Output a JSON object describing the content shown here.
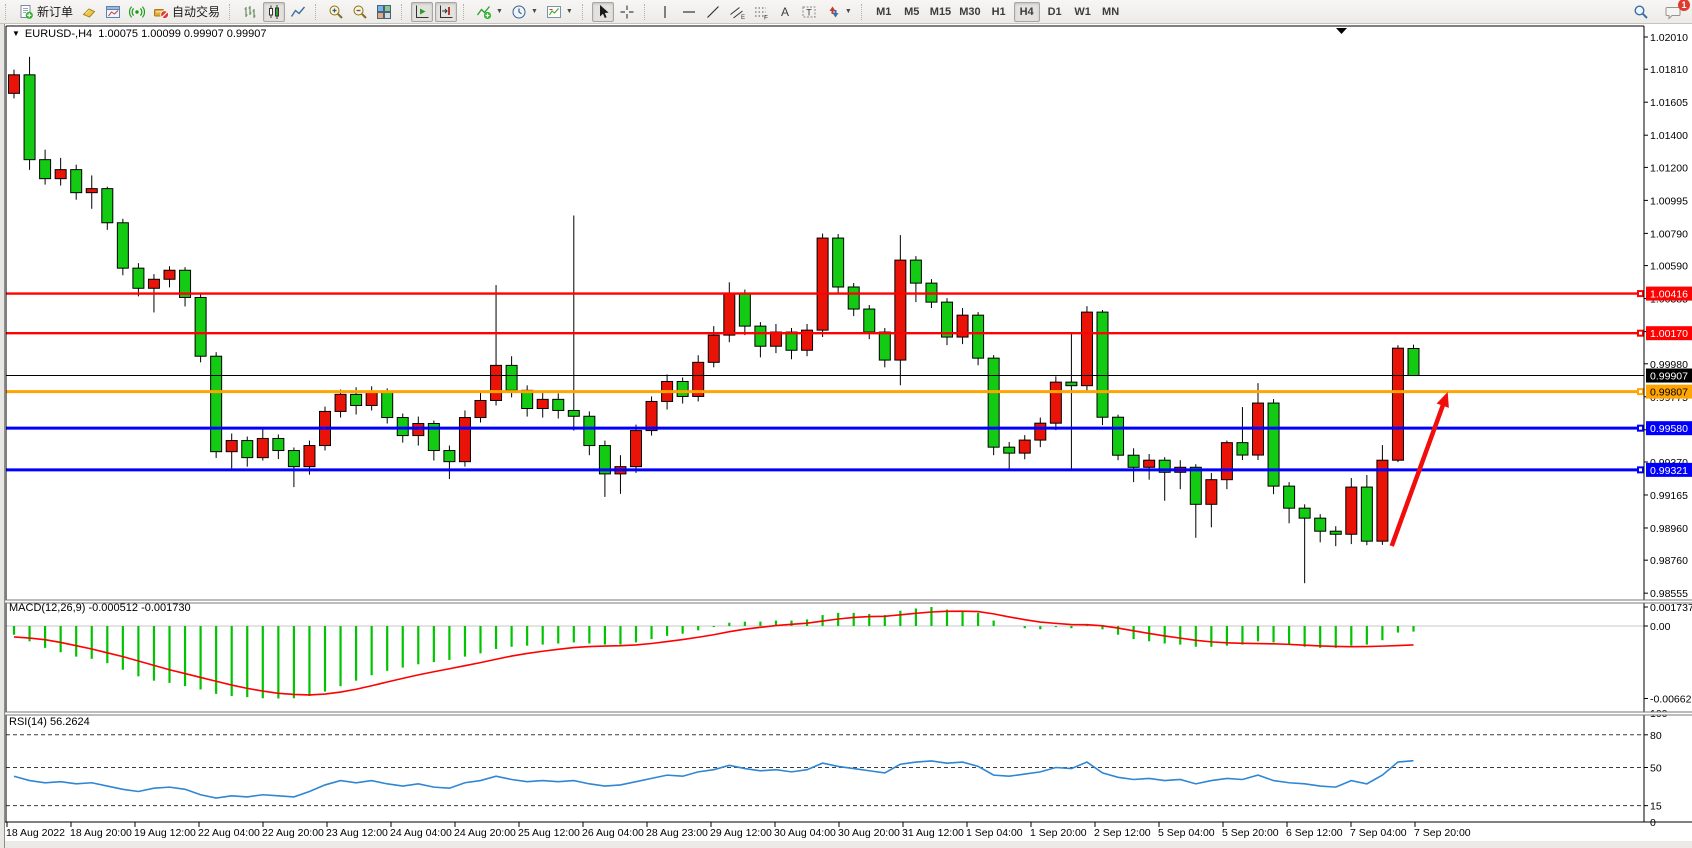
{
  "toolbar": {
    "new_order_label": "新订单",
    "autotrading_label": "自动交易",
    "timeframes": [
      "M1",
      "M5",
      "M15",
      "M30",
      "H1",
      "H4",
      "D1",
      "W1",
      "MN"
    ],
    "active_timeframe": "H4",
    "notifications_count": "1"
  },
  "chart": {
    "title_symbol": "EURUSD-,H4",
    "title_ohlc": "1.00075 1.00099 0.99907 0.99907",
    "macd_label": "MACD(12,26,9) -0.000512 -0.001730",
    "rsi_label": "RSI(14) 56.2624",
    "price_axis_ticks": [
      "1.02010",
      "1.01810",
      "1.01605",
      "1.01400",
      "1.01200",
      "1.00995",
      "1.00790",
      "1.00590",
      "1.00385",
      "1.00180",
      "0.99980",
      "0.99775",
      "0.99570",
      "0.99370",
      "0.99165",
      "0.98960",
      "0.98760",
      "0.98555"
    ],
    "hlines": [
      {
        "price": 1.00416,
        "label": "1.00416",
        "color": "#fe0100",
        "width": 2.4,
        "text_color": "#ffffff"
      },
      {
        "price": 1.0017,
        "label": "1.00170",
        "color": "#fe0100",
        "width": 2.4,
        "text_color": "#ffffff"
      },
      {
        "price": 0.99807,
        "label": "0.99807",
        "color": "#ffa400",
        "width": 3,
        "text_color": "#000000"
      },
      {
        "price": 0.9958,
        "label": "0.99580",
        "color": "#0100fe",
        "width": 3,
        "text_color": "#ffffff"
      },
      {
        "price": 0.99321,
        "label": "0.99321",
        "color": "#0100fe",
        "width": 3,
        "text_color": "#ffffff"
      }
    ],
    "current_price": {
      "price": 0.99907,
      "label": "0.99907",
      "color": "#000000",
      "text_color": "#ffffff"
    },
    "macd_axis": [
      {
        "v": 17.37,
        "label": "0.001737"
      },
      {
        "v": 0,
        "label": "0.00"
      },
      {
        "v": -66.28,
        "label": "-0.006628"
      }
    ],
    "rsi_axis": [
      {
        "v": 100,
        "label": "100",
        "dashed": false
      },
      {
        "v": 80,
        "label": "80",
        "dashed": true
      },
      {
        "v": 50,
        "label": "50",
        "dashed": true
      },
      {
        "v": 15,
        "label": "15",
        "dashed": true
      },
      {
        "v": 0,
        "label": "0",
        "dashed": false
      }
    ],
    "date_labels": [
      "18 Aug 2022",
      "18 Aug 20:00",
      "19 Aug 12:00",
      "22 Aug 04:00",
      "22 Aug 20:00",
      "23 Aug 12:00",
      "24 Aug 04:00",
      "24 Aug 20:00",
      "25 Aug 12:00",
      "26 Aug 04:00",
      "28 Aug 23:00",
      "29 Aug 12:00",
      "30 Aug 04:00",
      "30 Aug 20:00",
      "31 Aug 12:00",
      "1 Sep 04:00",
      "1 Sep 20:00",
      "2 Sep 12:00",
      "5 Sep 04:00",
      "5 Sep 20:00",
      "6 Sep 12:00",
      "7 Sep 04:00",
      "7 Sep 20:00"
    ]
  },
  "chart_data": {
    "type": "candlestick",
    "symbol": "EURUSD-",
    "timeframe": "H4",
    "note": "Chinese color convention: red = bullish (close>open), green = bearish",
    "up_color": "#ea1308",
    "down_color": "#14cb14",
    "price_range": [
      0.98555,
      1.0201
    ],
    "ohlc": [
      [
        1.0166,
        1.01807,
        1.01629,
        1.01775
      ],
      [
        1.01775,
        1.01887,
        1.01185,
        1.01248
      ],
      [
        1.01248,
        1.0131,
        1.01093,
        1.0113
      ],
      [
        1.0113,
        1.01259,
        1.01087,
        1.01186
      ],
      [
        1.01186,
        1.01217,
        1.00999,
        1.01043
      ],
      [
        1.01043,
        1.0115,
        1.00943,
        1.01068
      ],
      [
        1.01068,
        1.0108,
        1.00812,
        1.00856
      ],
      [
        1.00856,
        1.00881,
        1.0053,
        1.00574
      ],
      [
        1.00574,
        1.00605,
        1.00399,
        1.00449
      ],
      [
        1.00449,
        1.00537,
        1.00299,
        1.00505
      ],
      [
        1.00505,
        1.00586,
        1.00455,
        1.00561
      ],
      [
        1.00561,
        1.0058,
        1.00336,
        1.00392
      ],
      [
        1.00392,
        1.00416,
        0.99989,
        1.00027
      ],
      [
        1.00027,
        1.00052,
        0.99395,
        0.99434
      ],
      [
        0.99434,
        0.99547,
        0.9933,
        0.99503
      ],
      [
        0.99503,
        0.99528,
        0.99341,
        0.99397
      ],
      [
        0.99397,
        0.99572,
        0.99379,
        0.99516
      ],
      [
        0.99516,
        0.99541,
        0.99388,
        0.99441
      ],
      [
        0.99441,
        0.9946,
        0.99214,
        0.99341
      ],
      [
        0.99341,
        0.99503,
        0.99291,
        0.99472
      ],
      [
        0.99472,
        0.99714,
        0.99441,
        0.99684
      ],
      [
        0.99684,
        0.9982,
        0.99646,
        0.9979
      ],
      [
        0.9979,
        0.99834,
        0.99665,
        0.99721
      ],
      [
        0.99721,
        0.9984,
        0.9969,
        0.99802
      ],
      [
        0.99802,
        0.99827,
        0.99609,
        0.99646
      ],
      [
        0.99646,
        0.99671,
        0.9949,
        0.99534
      ],
      [
        0.99534,
        0.99652,
        0.99472,
        0.99609
      ],
      [
        0.99609,
        0.99627,
        0.99379,
        0.99441
      ],
      [
        0.99441,
        0.99472,
        0.99264,
        0.99372
      ],
      [
        0.99372,
        0.9969,
        0.99341,
        0.99646
      ],
      [
        0.99646,
        0.99808,
        0.99615,
        0.99752
      ],
      [
        0.99752,
        1.00469,
        0.99721,
        0.9997
      ],
      [
        0.9997,
        1.00027,
        0.99771,
        0.99815
      ],
      [
        0.99815,
        0.99846,
        0.99652,
        0.99702
      ],
      [
        0.99702,
        0.99802,
        0.99646,
        0.99759
      ],
      [
        0.99759,
        0.99796,
        0.9964,
        0.9969
      ],
      [
        0.9969,
        1.00901,
        0.99565,
        0.99654
      ],
      [
        0.99654,
        0.99684,
        0.99412,
        0.99472
      ],
      [
        0.99472,
        0.99503,
        0.99153,
        0.99296
      ],
      [
        0.99296,
        0.99412,
        0.99172,
        0.99341
      ],
      [
        0.99341,
        0.99602,
        0.99302,
        0.99565
      ],
      [
        0.99565,
        0.99777,
        0.99534,
        0.99746
      ],
      [
        0.99746,
        0.99914,
        0.99696,
        0.9987
      ],
      [
        0.9987,
        0.99895,
        0.99733,
        0.99777
      ],
      [
        0.99777,
        1.00033,
        0.99746,
        0.99989
      ],
      [
        0.99989,
        1.00214,
        0.99958,
        1.00158
      ],
      [
        1.00158,
        1.00486,
        1.00114,
        1.00416
      ],
      [
        1.00416,
        1.00441,
        1.00158,
        1.00214
      ],
      [
        1.00214,
        1.00239,
        1.0002,
        1.00089
      ],
      [
        1.00089,
        1.00227,
        1.00046,
        1.00177
      ],
      [
        1.00177,
        1.00202,
        1.00008,
        1.00064
      ],
      [
        1.00064,
        1.00227,
        1.00027,
        1.00189
      ],
      [
        1.00189,
        1.00789,
        1.00146,
        1.00761
      ],
      [
        1.00761,
        1.00786,
        1.00419,
        1.00457
      ],
      [
        1.00457,
        1.00482,
        1.00276,
        1.0032
      ],
      [
        1.0032,
        1.00345,
        1.00133,
        1.00177
      ],
      [
        1.00177,
        1.00202,
        0.99958,
        1.00003
      ],
      [
        1.00003,
        1.00779,
        0.99847,
        1.00624
      ],
      [
        1.00624,
        1.00649,
        1.00363,
        1.00481
      ],
      [
        1.00481,
        1.00506,
        1.00326,
        1.00363
      ],
      [
        1.00363,
        1.00388,
        1.00096,
        1.00146
      ],
      [
        1.00146,
        1.00326,
        1.00102,
        1.00282
      ],
      [
        1.00282,
        1.00301,
        0.99971,
        1.00015
      ],
      [
        1.00015,
        1.00034,
        0.99412,
        0.99462
      ],
      [
        0.99462,
        0.99494,
        0.99319,
        0.99425
      ],
      [
        0.99425,
        0.99537,
        0.99387,
        0.99506
      ],
      [
        0.99506,
        0.99646,
        0.99462,
        0.99611
      ],
      [
        0.99611,
        0.99902,
        0.99568,
        0.99866
      ],
      [
        0.99866,
        1.00177,
        0.99319,
        0.99844
      ],
      [
        0.99844,
        1.00338,
        0.99808,
        1.00301
      ],
      [
        1.00301,
        1.00314,
        0.99599,
        0.99648
      ],
      [
        0.99648,
        0.99664,
        0.99381,
        0.99412
      ],
      [
        0.99412,
        0.99455,
        0.99245,
        0.99337
      ],
      [
        0.99337,
        0.99419,
        0.9926,
        0.99381
      ],
      [
        0.99381,
        0.994,
        0.99129,
        0.99306
      ],
      [
        0.99306,
        0.99381,
        0.99201,
        0.99337
      ],
      [
        0.99337,
        0.99356,
        0.98899,
        0.99107
      ],
      [
        0.99107,
        0.99302,
        0.98964,
        0.9926
      ],
      [
        0.9926,
        0.99503,
        0.99201,
        0.9949
      ],
      [
        0.9949,
        0.99711,
        0.99382,
        0.99413
      ],
      [
        0.99413,
        0.9986,
        0.99382,
        0.99736
      ],
      [
        0.99736,
        0.99761,
        0.9917,
        0.9922
      ],
      [
        0.9922,
        0.99245,
        0.98989,
        0.99083
      ],
      [
        0.99083,
        0.99107,
        0.98617,
        0.99021
      ],
      [
        0.99021,
        0.99046,
        0.98871,
        0.9894
      ],
      [
        0.9894,
        0.98971,
        0.98847,
        0.98921
      ],
      [
        0.98921,
        0.9927,
        0.9886,
        0.99214
      ],
      [
        0.99214,
        0.99289,
        0.98853,
        0.98878
      ],
      [
        0.98878,
        0.99475,
        0.98855,
        0.99381
      ],
      [
        0.99381,
        1.00096,
        0.99369,
        1.00077
      ],
      [
        1.00075,
        1.00099,
        0.99907,
        0.99907
      ]
    ],
    "macd_unit": 0.0001,
    "macd_histogram": [
      -8,
      -14,
      -20,
      -24,
      -28,
      -30,
      -34,
      -40,
      -46,
      -50,
      -52,
      -55,
      -58,
      -62,
      -64,
      -65,
      -66,
      -66.3,
      -66,
      -64,
      -60,
      -55,
      -50,
      -45,
      -41,
      -38,
      -35,
      -33,
      -31,
      -28,
      -25,
      -21,
      -19,
      -18,
      -17,
      -16,
      -15,
      -16,
      -17,
      -17,
      -15,
      -12,
      -9,
      -7,
      -4,
      -1,
      3,
      4,
      4,
      5,
      5,
      6,
      10,
      12,
      12,
      11,
      10,
      14,
      16,
      17.37,
      15,
      14,
      12,
      5,
      0,
      -2,
      -3,
      -1,
      -2,
      1,
      -3,
      -8,
      -12,
      -14,
      -16,
      -17,
      -19,
      -19,
      -18,
      -17,
      -14,
      -15,
      -17,
      -19,
      -20,
      -20,
      -18,
      -17,
      -13,
      -6,
      -5.12
    ],
    "macd_signal": [
      -10,
      -11,
      -12.5,
      -15,
      -18,
      -21,
      -24.5,
      -28,
      -32,
      -36,
      -40,
      -43.5,
      -47,
      -50.5,
      -54,
      -57,
      -59.5,
      -61.5,
      -62.6,
      -63,
      -62.2,
      -60.4,
      -57.8,
      -54.6,
      -51.2,
      -47.9,
      -44.7,
      -41.8,
      -39.1,
      -36.3,
      -33.5,
      -30.4,
      -27.5,
      -25.1,
      -23.1,
      -21.3,
      -19.7,
      -18.8,
      -18.3,
      -18,
      -17.3,
      -16,
      -14.2,
      -12.4,
      -10.3,
      -8,
      -5.2,
      -2.9,
      -1.2,
      0.4,
      1.5,
      2.6,
      4.5,
      6.4,
      7.8,
      8.6,
      8.9,
      10.2,
      11.6,
      12.8,
      13.4,
      13.5,
      13.2,
      11.1,
      8.3,
      5.8,
      3.6,
      2.4,
      1.3,
      1.2,
      0.2,
      -1.9,
      -4.4,
      -6.8,
      -9.1,
      -11.1,
      -13.1,
      -14.5,
      -15.4,
      -15.8,
      -16.1,
      -16.3,
      -16.8,
      -17.5,
      -18.2,
      -18.7,
      -18.9,
      -18.8,
      -18.4,
      -17.9,
      -17.3
    ],
    "rsi": [
      42,
      38,
      36,
      37,
      35,
      36,
      33,
      30,
      28,
      31,
      32,
      30,
      25,
      22,
      24,
      23,
      25,
      24,
      23,
      28,
      34,
      38,
      36,
      38,
      35,
      33,
      35,
      32,
      31,
      36,
      38,
      42,
      39,
      37,
      38,
      37,
      38,
      35,
      33,
      34,
      37,
      40,
      43,
      42,
      46,
      48,
      52,
      49,
      47,
      48,
      46,
      48,
      54,
      51,
      49,
      47,
      45,
      53,
      55,
      56,
      54,
      55,
      51,
      43,
      42,
      44,
      46,
      50,
      49,
      55,
      45,
      41,
      39,
      40,
      38,
      39,
      35,
      38,
      40,
      39,
      43,
      38,
      36,
      35,
      33,
      32,
      38,
      35,
      43,
      55,
      56.26
    ],
    "arrow_annotation": {
      "color": "#f20d0d",
      "from": {
        "bar": 88.6,
        "price": 0.98848
      },
      "to": {
        "bar": 92.2,
        "price": 0.99805
      }
    },
    "line_colors": {
      "resistance": "#fe0100",
      "pivot": "#ffa400",
      "support": "#0100fe",
      "current": "#000000"
    },
    "macd_colors": {
      "histogram": "#00c400",
      "signal": "#fe0000"
    },
    "rsi_color": "#2f86d5"
  }
}
